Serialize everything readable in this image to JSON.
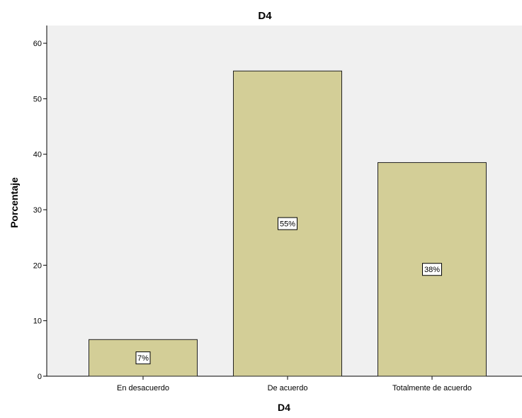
{
  "chart_data": {
    "type": "bar",
    "title": "D4",
    "xlabel": "D4",
    "ylabel": "Porcentaje",
    "categories": [
      "En desacuerdo",
      "De acuerdo",
      "Totalmente de acuerdo"
    ],
    "values": [
      6.6,
      55.0,
      38.5
    ],
    "data_labels": [
      "7%",
      "55%",
      "38%"
    ],
    "ylim": [
      0,
      63.2
    ],
    "yticks": [
      0,
      10,
      20,
      30,
      40,
      50,
      60
    ],
    "grid": false,
    "legend": "none",
    "colors": {
      "plot_background": "#f0f0f0",
      "bar_fill": "#d3ce97",
      "bar_stroke": "#222222",
      "label_box_fill": "#ffffff"
    }
  }
}
